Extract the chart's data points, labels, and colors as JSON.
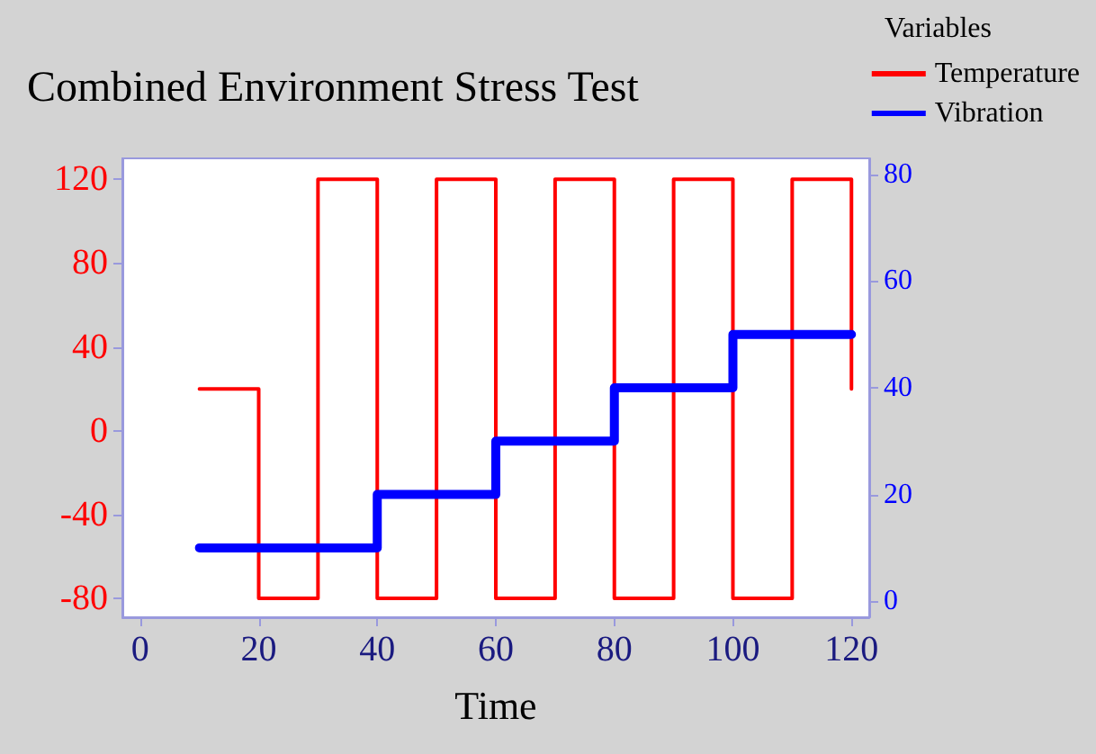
{
  "chart_data": {
    "type": "step",
    "title": "Combined Environment Stress Test",
    "xlabel": "Time",
    "legend_title": "Variables",
    "xlim": [
      -3,
      123
    ],
    "xticks": [
      0,
      20,
      40,
      60,
      80,
      100,
      120
    ],
    "ylim": [
      -89,
      130
    ],
    "yticks": [
      -80,
      -40,
      0,
      40,
      80,
      120
    ],
    "y2lim": [
      -3,
      83
    ],
    "y2ticks": [
      0,
      20,
      40,
      60,
      80
    ],
    "grid": false,
    "legend": "top right",
    "marker": "none",
    "line_style": "solid",
    "series": [
      {
        "name": "Temperature",
        "color": "#ff0000",
        "x": [
          10,
          20,
          30,
          40,
          50,
          60,
          70,
          80,
          90,
          100,
          110,
          120
        ],
        "values": [
          20,
          -80,
          120,
          -80,
          120,
          -80,
          120,
          -80,
          120,
          -80,
          120,
          20
        ]
      },
      {
        "name": "Vibration",
        "color": "#0000ff",
        "axis": "y2",
        "x": [
          10,
          40,
          60,
          80,
          100,
          120
        ],
        "values": [
          10,
          20,
          30,
          40,
          50,
          50
        ]
      }
    ]
  }
}
